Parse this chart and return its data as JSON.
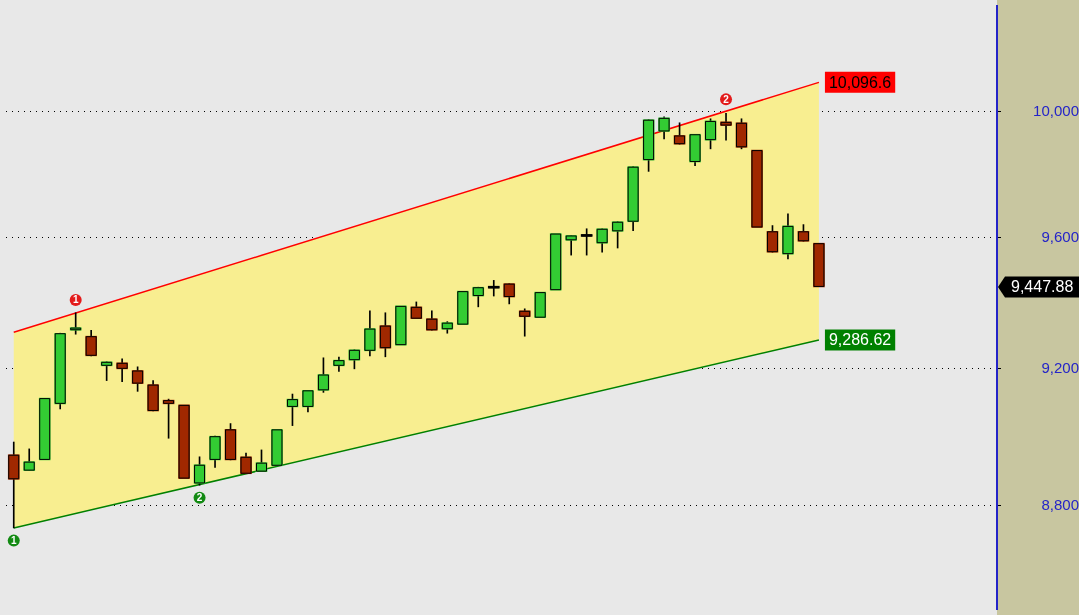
{
  "chart_data": {
    "type": "candlestick",
    "categories": [
      null,
      null,
      null,
      null,
      null,
      null,
      null,
      null,
      null,
      null,
      null,
      null,
      null,
      null,
      null,
      null,
      null,
      null,
      null,
      null,
      null,
      null,
      null,
      null,
      null,
      null,
      null,
      null,
      null,
      null,
      null,
      null,
      null,
      null,
      null,
      null,
      null,
      null,
      null,
      null,
      null,
      null,
      null,
      null,
      null,
      null,
      null,
      null,
      null,
      null,
      null,
      null,
      null,
      null,
      null,
      null,
      null,
      null,
      null,
      null,
      null,
      null,
      null,
      null
    ],
    "log": true,
    "ylim": [
      8510,
      10350
    ],
    "yticks": [
      {
        "value": 8800,
        "label": "8,800"
      },
      {
        "value": 9200,
        "label": "9,200"
      },
      {
        "value": 9600,
        "label": "9,600"
      },
      {
        "value": 10000,
        "label": "10,000"
      }
    ],
    "grid": "y",
    "tick_labels": "y",
    "annotations": [
      {
        "text": "1",
        "y": 9408
      },
      {
        "text": "2",
        "y": 10041
      },
      {
        "text": "1",
        "y": 8701
      },
      {
        "text": "2",
        "y": 8823
      }
    ],
    "series": [
      {
        "type": "line",
        "color": "#ff0000",
        "values": [
          9310,
          null,
          null,
          null,
          null,
          null,
          null,
          null,
          null,
          null,
          null,
          null,
          null,
          null,
          null,
          null,
          null,
          null,
          null,
          null,
          null,
          null,
          null,
          null,
          null,
          null,
          null,
          null,
          null,
          null,
          null,
          null,
          null,
          null,
          null,
          null,
          null,
          null,
          null,
          null,
          null,
          null,
          null,
          null,
          null,
          null,
          null,
          null,
          null,
          null,
          null,
          null,
          10096.6,
          null,
          null,
          null,
          null,
          null,
          null,
          null,
          null,
          null,
          null,
          null
        ],
        "upper": [
          9310,
          null,
          null,
          null,
          null,
          null,
          null,
          null,
          null,
          null,
          null,
          null,
          null,
          null,
          null,
          null,
          null,
          null,
          null,
          null,
          null,
          null,
          null,
          null,
          null,
          null,
          null,
          null,
          null,
          null,
          null,
          null,
          null,
          null,
          null,
          null,
          null,
          null,
          null,
          null,
          null,
          null,
          null,
          null,
          null,
          null,
          null,
          null,
          null,
          null,
          null,
          null,
          10096.6,
          null,
          null,
          null,
          null,
          null,
          null,
          null,
          null,
          null,
          null,
          null
        ],
        "lower": [
          8737,
          null,
          null,
          null,
          null,
          null,
          null,
          null,
          null,
          null,
          null,
          null,
          null,
          null,
          null,
          null,
          null,
          null,
          null,
          null,
          null,
          null,
          null,
          null,
          null,
          null,
          null,
          null,
          null,
          null,
          null,
          null,
          null,
          null,
          null,
          null,
          null,
          null,
          null,
          null,
          null,
          null,
          null,
          null,
          null,
          null,
          null,
          null,
          null,
          null,
          null,
          null,
          9286.62,
          null,
          null,
          null,
          null,
          null,
          null,
          null,
          null,
          null,
          null,
          null
        ],
        "value_labels": [
          null,
          null,
          null,
          null,
          null,
          null,
          null,
          null,
          null,
          null,
          null,
          null,
          null,
          null,
          null,
          null,
          null,
          null,
          null,
          null,
          null,
          null,
          null,
          null,
          null,
          null,
          null,
          null,
          null,
          null,
          null,
          null,
          null,
          null,
          null,
          null,
          null,
          null,
          null,
          null,
          null,
          null,
          null,
          null,
          null,
          null,
          null,
          null,
          null,
          null,
          null,
          null,
          "10,096.6",
          null,
          null,
          null,
          null,
          null,
          null,
          null,
          null,
          null,
          null,
          null
        ]
      },
      {
        "type": "line",
        "color": "#008000",
        "values": [
          8737,
          null,
          null,
          null,
          null,
          null,
          null,
          null,
          null,
          null,
          null,
          null,
          null,
          null,
          null,
          null,
          null,
          null,
          null,
          null,
          null,
          null,
          null,
          null,
          null,
          null,
          null,
          null,
          null,
          null,
          null,
          null,
          null,
          null,
          null,
          null,
          null,
          null,
          null,
          null,
          null,
          null,
          null,
          null,
          null,
          null,
          null,
          null,
          null,
          null,
          null,
          null,
          9286.62,
          null,
          null,
          null,
          null,
          null,
          null,
          null,
          null,
          null,
          null,
          null
        ],
        "value_labels": [
          null,
          null,
          null,
          null,
          null,
          null,
          null,
          null,
          null,
          null,
          null,
          null,
          null,
          null,
          null,
          null,
          null,
          null,
          null,
          null,
          null,
          null,
          null,
          null,
          null,
          null,
          null,
          null,
          null,
          null,
          null,
          null,
          null,
          null,
          null,
          null,
          null,
          null,
          null,
          null,
          null,
          null,
          null,
          null,
          null,
          null,
          null,
          null,
          null,
          null,
          null,
          null,
          "9,286.62",
          null,
          null,
          null,
          null,
          null,
          null,
          null,
          null,
          null,
          null,
          null
        ]
      },
      {
        "color": "#000000",
        "colors": [
          "#a02800",
          "#33cc33",
          "#33cc33",
          "#33cc33",
          "#33cc33",
          "#a02800",
          "#33cc33",
          "#a02800",
          "#a02800",
          "#a02800",
          "#a02800",
          "#a02800",
          "#33cc33",
          "#33cc33",
          "#a02800",
          "#a02800",
          "#33cc33",
          "#33cc33",
          "#33cc33",
          "#33cc33",
          "#33cc33",
          "#33cc33",
          "#33cc33",
          "#33cc33",
          "#a02800",
          "#33cc33",
          "#a02800",
          "#a02800",
          "#33cc33",
          "#33cc33",
          "#33cc33",
          "#000000",
          "#a02800",
          "#a02800",
          "#33cc33",
          "#33cc33",
          "#33cc33",
          "#000000",
          "#33cc33",
          "#33cc33",
          "#33cc33",
          "#33cc33",
          "#33cc33",
          "#a02800",
          "#33cc33",
          "#33cc33",
          "#a02800",
          "#a02800",
          "#a02800",
          "#a02800",
          "#33cc33",
          "#a02800",
          "#a02800",
          null,
          null,
          null,
          null,
          null,
          null,
          null,
          null,
          null,
          null,
          null
        ],
        "ohlc": [
          [
            8947,
            8984,
            8737,
            8876
          ],
          [
            8901,
            8964,
            8901,
            8927
          ],
          [
            8932,
            9113,
            8932,
            9113
          ],
          [
            9096,
            9307,
            9081,
            9307
          ],
          [
            9316,
            9369,
            9304,
            9324
          ],
          [
            9298,
            9316,
            9239,
            9239
          ],
          [
            9209,
            9221,
            9165,
            9221
          ],
          [
            9218,
            9230,
            9162,
            9200
          ],
          [
            9195,
            9206,
            9133,
            9156
          ],
          [
            9153,
            9165,
            9075,
            9075
          ],
          [
            9107,
            9110,
            8995,
            9096
          ],
          [
            9093,
            9093,
            8878,
            8878
          ],
          [
            8864,
            8941,
            8859,
            8918
          ],
          [
            8932,
            9001,
            8910,
            9001
          ],
          [
            9021,
            9038,
            8932,
            8932
          ],
          [
            8941,
            8952,
            8892,
            8892
          ],
          [
            8898,
            8961,
            8898,
            8924
          ],
          [
            8915,
            9021,
            8915,
            9021
          ],
          [
            9087,
            9125,
            9032,
            9110
          ],
          [
            9087,
            9136,
            9072,
            9136
          ],
          [
            9136,
            9233,
            9130,
            9183
          ],
          [
            9209,
            9235,
            9192,
            9226
          ],
          [
            9226,
            9257,
            9200,
            9257
          ],
          [
            9254,
            9375,
            9239,
            9321
          ],
          [
            9330,
            9369,
            9236,
            9262
          ],
          [
            9271,
            9390,
            9271,
            9390
          ],
          [
            9387,
            9402,
            9351,
            9351
          ],
          [
            9351,
            9375,
            9316,
            9316
          ],
          [
            9319,
            9342,
            9307,
            9339
          ],
          [
            9333,
            9435,
            9333,
            9435
          ],
          [
            9420,
            9447,
            9387,
            9447
          ],
          [
            9444,
            9468,
            9420,
            9444
          ],
          [
            9458,
            9458,
            9396,
            9417
          ],
          [
            9375,
            9381,
            9298,
            9357
          ],
          [
            9354,
            9432,
            9354,
            9432
          ],
          [
            9438,
            9613,
            9438,
            9613
          ],
          [
            9592,
            9607,
            9546,
            9607
          ],
          [
            9604,
            9628,
            9546,
            9604
          ],
          [
            9583,
            9628,
            9555,
            9628
          ],
          [
            9620,
            9650,
            9568,
            9650
          ],
          [
            9650,
            9824,
            9622,
            9824
          ],
          [
            9845,
            9975,
            9809,
            9975
          ],
          [
            9937,
            9984,
            9913,
            9981
          ],
          [
            9924,
            9965,
            9896,
            9896
          ],
          [
            9839,
            9928,
            9827,
            9928
          ],
          [
            9909,
            9978,
            9881,
            9971
          ],
          [
            9968,
            9996,
            9909,
            9956
          ],
          [
            9965,
            9978,
            9881,
            9886
          ],
          [
            9877,
            9877,
            9632,
            9632
          ],
          [
            9620,
            9638,
            9555,
            9555
          ],
          [
            9549,
            9675,
            9534,
            9637
          ],
          [
            9620,
            9641,
            9589,
            9589
          ],
          [
            9583,
            9583,
            9447.88,
            9447.88
          ],
          null,
          null,
          null,
          null,
          null,
          null,
          null,
          null,
          null,
          null,
          null
        ],
        "value_labels": [
          null,
          null,
          null,
          null,
          null,
          null,
          null,
          null,
          null,
          null,
          null,
          null,
          null,
          null,
          null,
          null,
          null,
          null,
          null,
          null,
          null,
          null,
          null,
          null,
          null,
          null,
          null,
          null,
          null,
          null,
          null,
          null,
          null,
          null,
          null,
          null,
          null,
          null,
          null,
          null,
          null,
          null,
          null,
          null,
          null,
          null,
          null,
          null,
          null,
          null,
          null,
          null,
          "9,447.88",
          null,
          null,
          null,
          null,
          null,
          null,
          null,
          null,
          null,
          null,
          null
        ]
      },
      {
        "type": "scatter",
        "color": "#e31b1b",
        "marker": "circle",
        "values": [
          null,
          null,
          null,
          null,
          9408,
          null,
          null,
          null,
          null,
          null,
          null,
          null,
          null,
          null,
          null,
          null,
          null,
          null,
          null,
          null,
          null,
          null,
          null,
          null,
          null,
          null,
          null,
          null,
          null,
          null,
          null,
          null,
          null,
          null,
          null,
          null,
          null,
          null,
          null,
          null,
          null,
          null,
          null,
          null,
          null,
          null,
          10041,
          null,
          null,
          null,
          null,
          null,
          null,
          null,
          null,
          null,
          null,
          null,
          null,
          null,
          null,
          null,
          null,
          null
        ]
      },
      {
        "type": "scatter",
        "color": "#128a12",
        "marker": "circle",
        "values": [
          8701,
          null,
          null,
          null,
          null,
          null,
          null,
          null,
          null,
          null,
          null,
          null,
          8823,
          null,
          null,
          null,
          null,
          null,
          null,
          null,
          null,
          null,
          null,
          null,
          null,
          null,
          null,
          null,
          null,
          null,
          null,
          null,
          null,
          null,
          null,
          null,
          null,
          null,
          null,
          null,
          null,
          null,
          null,
          null,
          null,
          null,
          null,
          null,
          null,
          null,
          null,
          null,
          null,
          null,
          null,
          null,
          null,
          null,
          null,
          null,
          null,
          null,
          null,
          null
        ]
      }
    ]
  }
}
